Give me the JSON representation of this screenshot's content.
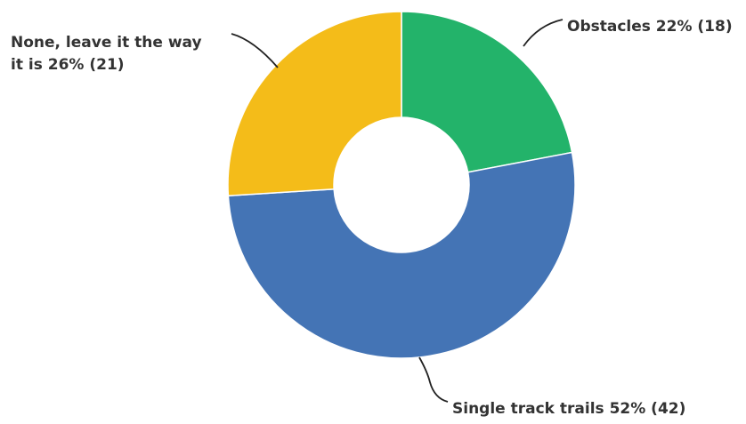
{
  "chart_data": {
    "type": "pie",
    "variant": "donut",
    "title": "",
    "slices": [
      {
        "label": "Obstacles",
        "percent": 22,
        "count": 18,
        "color": "#23b36a",
        "label_lines": [
          "Obstacles 22% (18)"
        ]
      },
      {
        "label": "Single track trails",
        "percent": 52,
        "count": 42,
        "color": "#4474b5",
        "label_lines": [
          "Single track trails 52% (42)"
        ]
      },
      {
        "label": "None, leave it the way it is",
        "percent": 26,
        "count": 21,
        "color": "#f4bc19",
        "label_lines": [
          "None, leave it the way",
          "it is 26% (21)"
        ]
      }
    ],
    "start_angle_deg": 0,
    "direction": "clockwise"
  }
}
